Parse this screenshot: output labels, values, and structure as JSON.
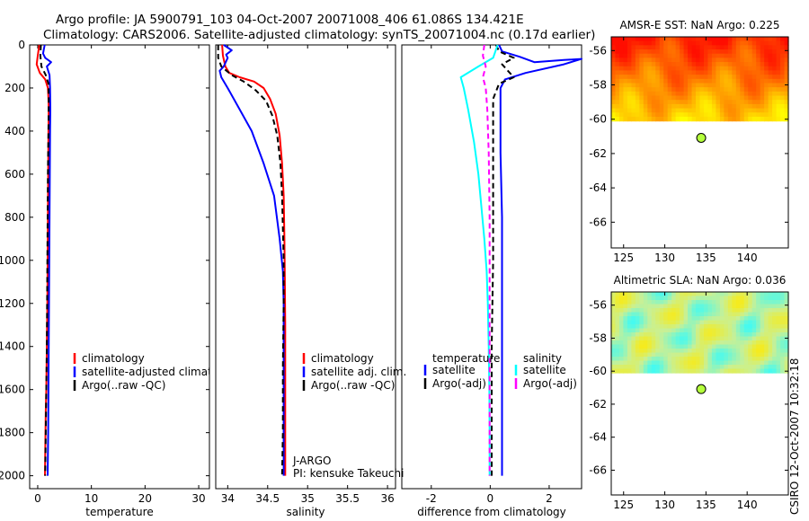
{
  "header": {
    "line1": "Argo profile: JA 5900791_103 04-Oct-2007 20071008_406 61.086S 134.421E",
    "line2": "Climatology: CARS2006. Satellite-adjusted climatology: synTS_20071004.nc (0.17d earlier)"
  },
  "footer_vertical": "CSIRO 12-Oct-2007 10:32:18",
  "colors": {
    "climatology": "#ff0000",
    "satellite": "#0000ff",
    "argo": "#000000",
    "salinity_satellite": "#00ffff",
    "salinity_argo": "#ff00ff",
    "argo_marker": "#b4ff3c"
  },
  "chart_data": [
    {
      "id": "temperature",
      "type": "line",
      "xlabel": "temperature",
      "ylabel": "",
      "xlim": [
        -1.5,
        32
      ],
      "ylim": [
        2060,
        0
      ],
      "xticks": [
        0,
        10,
        20,
        30
      ],
      "xtick_labels": [
        "0",
        "10",
        "20",
        "30"
      ],
      "yticks": [
        0,
        200,
        400,
        600,
        800,
        1000,
        1200,
        1400,
        1600,
        1800,
        2000
      ],
      "ytick_labels": [
        "0",
        "200",
        "400",
        "600",
        "800",
        "1000",
        "1200",
        "1400",
        "1600",
        "1800",
        "2000"
      ],
      "legend": [
        "climatology",
        "satellite-adjusted climatolog",
        "Argo(..raw -QC)"
      ],
      "series": [
        {
          "name": "climatology",
          "style": "solid",
          "color": "red",
          "x": [
            0.3,
            0.0,
            -0.2,
            0.4,
            1.4,
            1.9,
            2.0,
            2.05,
            2.0,
            1.95,
            1.9,
            1.85,
            1.8,
            1.7,
            1.6,
            1.5,
            1.45,
            1.4,
            1.35
          ],
          "y": [
            0,
            50,
            90,
            130,
            160,
            200,
            250,
            300,
            400,
            600,
            800,
            1000,
            1200,
            1400,
            1600,
            1700,
            1800,
            1900,
            2000
          ]
        },
        {
          "name": "satellite-adjusted climatolog",
          "style": "solid",
          "color": "blue",
          "x": [
            1.3,
            1.0,
            1.4,
            2.5,
            1.7,
            2.2,
            2.3,
            2.35,
            2.3,
            2.25,
            2.2,
            2.15,
            2.1,
            2.05,
            2.0,
            1.95,
            1.9,
            1.85
          ],
          "y": [
            0,
            40,
            60,
            80,
            100,
            140,
            200,
            300,
            400,
            600,
            800,
            1000,
            1200,
            1400,
            1600,
            1800,
            1900,
            2000
          ]
        },
        {
          "name": "Argo(..raw -QC)",
          "style": "dashed",
          "color": "black",
          "x": [
            0.6,
            0.5,
            0.7,
            1.5,
            2.0,
            2.05,
            2.0,
            1.9,
            1.85,
            1.8,
            1.75,
            1.7,
            1.6,
            1.5,
            1.4
          ],
          "y": [
            0,
            50,
            100,
            140,
            180,
            250,
            400,
            600,
            800,
            1000,
            1200,
            1400,
            1600,
            1800,
            2000
          ]
        }
      ]
    },
    {
      "id": "salinity",
      "type": "line",
      "xlabel": "salinity",
      "xlim": [
        33.85,
        36.1
      ],
      "ylim": [
        2060,
        0
      ],
      "xticks": [
        34,
        34.5,
        35,
        35.5,
        36
      ],
      "xtick_labels": [
        "34",
        "34.5",
        "35",
        "35.5",
        "36"
      ],
      "legend": [
        "climatology",
        "satellite adj. clim.",
        "Argo(..raw -QC)"
      ],
      "annotations": [
        "J-ARGO",
        "PI: kensuke Takeuchi"
      ],
      "series": [
        {
          "name": "climatology",
          "style": "solid",
          "color": "red",
          "x": [
            33.93,
            33.94,
            33.97,
            34.02,
            34.15,
            34.33,
            34.45,
            34.53,
            34.6,
            34.65,
            34.68,
            34.7,
            34.71,
            34.715,
            34.72,
            34.72,
            34.72,
            34.72
          ],
          "y": [
            0,
            50,
            100,
            130,
            150,
            170,
            200,
            250,
            320,
            420,
            550,
            700,
            900,
            1100,
            1300,
            1600,
            1800,
            2000
          ]
        },
        {
          "name": "satellite adj. clim.",
          "style": "solid",
          "color": "blue",
          "x": [
            33.95,
            34.05,
            33.98,
            34.0,
            33.95,
            33.9,
            33.92,
            34.0,
            34.12,
            34.3,
            34.45,
            34.58,
            34.65,
            34.69,
            34.7,
            34.7,
            34.7,
            34.7,
            34.7
          ],
          "y": [
            0,
            25,
            45,
            60,
            100,
            120,
            150,
            200,
            280,
            400,
            550,
            700,
            900,
            1050,
            1200,
            1400,
            1600,
            1800,
            2000
          ]
        },
        {
          "name": "Argo(..raw -QC)",
          "style": "dashed",
          "color": "black",
          "x": [
            33.88,
            33.88,
            33.92,
            34.05,
            34.2,
            34.35,
            34.48,
            34.56,
            34.62,
            34.66,
            34.68,
            34.69,
            34.7,
            34.7,
            34.69,
            34.69,
            34.68
          ],
          "y": [
            0,
            60,
            100,
            140,
            170,
            210,
            260,
            330,
            420,
            550,
            700,
            850,
            1000,
            1200,
            1500,
            1800,
            2000
          ]
        }
      ]
    },
    {
      "id": "difference",
      "type": "line",
      "xlabel": "difference from climatology",
      "xlim": [
        -3.0,
        3.1
      ],
      "ylim": [
        2060,
        0
      ],
      "xticks": [
        -2,
        0,
        2
      ],
      "xtick_labels": [
        "-2",
        "0",
        "2"
      ],
      "legend_temperature": {
        "title": "temperature",
        "entries": [
          "satellite",
          "Argo(-adj)"
        ]
      },
      "legend_salinity": {
        "title": "salinity",
        "entries": [
          "satellite",
          "Argo(-adj)"
        ]
      },
      "series": [
        {
          "name": "temperature satellite",
          "style": "solid",
          "color": "blue",
          "x": [
            0.3,
            0.4,
            1.0,
            1.5,
            2.5,
            3.1,
            2.5,
            1.2,
            0.5,
            0.35,
            0.35,
            0.35,
            0.4,
            0.4,
            0.4,
            0.4,
            0.4,
            0.4,
            0.4
          ],
          "y": [
            0,
            30,
            55,
            80,
            70,
            65,
            90,
            130,
            160,
            200,
            300,
            500,
            800,
            1100,
            1400,
            1600,
            1800,
            1900,
            2000
          ]
        },
        {
          "name": "temperature Argo(-adj)",
          "style": "dashed",
          "color": "black",
          "x": [
            0.2,
            0.3,
            0.8,
            0.4,
            0.6,
            0.8,
            0.3,
            0.1,
            0.1,
            0.1,
            0.1,
            0.05,
            0.05,
            0.05
          ],
          "y": [
            0,
            30,
            60,
            90,
            120,
            150,
            180,
            250,
            400,
            700,
            1000,
            1400,
            1800,
            2000
          ]
        },
        {
          "name": "salinity satellite",
          "style": "solid",
          "color": "cyan",
          "x": [
            0.25,
            0.1,
            -0.4,
            -1.0,
            -0.9,
            -0.75,
            -0.55,
            -0.4,
            -0.3,
            -0.2,
            -0.12,
            -0.08,
            -0.05,
            -0.03,
            -0.02,
            -0.02,
            -0.02
          ],
          "y": [
            0,
            60,
            100,
            150,
            200,
            300,
            450,
            600,
            750,
            900,
            1050,
            1200,
            1400,
            1600,
            1800,
            1900,
            2000
          ]
        },
        {
          "name": "salinity Argo(-adj)",
          "style": "dashed",
          "color": "magenta",
          "x": [
            -0.2,
            -0.25,
            -0.15,
            -0.25,
            -0.15,
            -0.1,
            -0.05,
            -0.02,
            -0.02,
            -0.02,
            -0.02
          ],
          "y": [
            0,
            50,
            100,
            150,
            200,
            300,
            500,
            800,
            1200,
            1600,
            2000
          ]
        }
      ]
    },
    {
      "id": "amsr_sst",
      "type": "heatmap",
      "title": "AMSR-E SST: NaN Argo: 0.225",
      "xlim": [
        123.5,
        145
      ],
      "ylim": [
        -67.5,
        -55.2
      ],
      "xticks": [
        125,
        130,
        135,
        140
      ],
      "xtick_labels": [
        "125",
        "130",
        "135",
        "140"
      ],
      "yticks": [
        -56,
        -58,
        -60,
        -62,
        -64,
        -66
      ],
      "ytick_labels": [
        "-56",
        "-58",
        "-60",
        "-62",
        "-64",
        "-66"
      ],
      "data_region_lat": [
        -60.1,
        -55.2
      ],
      "argo_position": {
        "lon": 134.421,
        "lat": -61.086
      }
    },
    {
      "id": "altimetric_sla",
      "type": "heatmap",
      "title": "Altimetric SLA: NaN Argo: 0.036",
      "xlim": [
        123.5,
        145
      ],
      "ylim": [
        -67.5,
        -55.2
      ],
      "xticks": [
        125,
        130,
        135,
        140
      ],
      "xtick_labels": [
        "125",
        "130",
        "135",
        "140"
      ],
      "yticks": [
        -56,
        -58,
        -60,
        -62,
        -64,
        -66
      ],
      "ytick_labels": [
        "-56",
        "-58",
        "-60",
        "-62",
        "-64",
        "-66"
      ],
      "data_region_lat": [
        -60.1,
        -55.2
      ],
      "argo_position": {
        "lon": 134.421,
        "lat": -61.086
      }
    }
  ]
}
